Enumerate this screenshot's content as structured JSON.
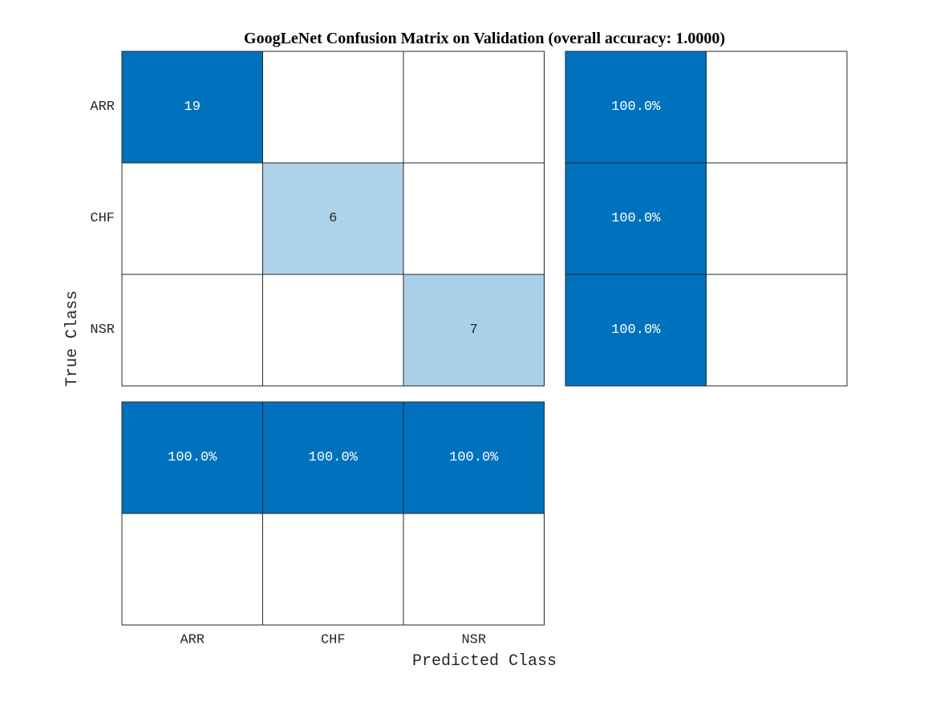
{
  "chart_data": {
    "type": "heatmap",
    "title": "GoogLeNet Confusion Matrix on Validation (overall accuracy: 1.0000)",
    "xlabel": "Predicted Class",
    "ylabel": "True Class",
    "classes": [
      "ARR",
      "CHF",
      "NSR"
    ],
    "matrix": [
      [
        19,
        0,
        0
      ],
      [
        0,
        6,
        0
      ],
      [
        0,
        0,
        7
      ]
    ],
    "row_summary": {
      "correct": [
        "100.0%",
        "100.0%",
        "100.0%"
      ],
      "incorrect": [
        "",
        "",
        ""
      ]
    },
    "column_summary": {
      "correct": [
        "100.0%",
        "100.0%",
        "100.0%"
      ],
      "incorrect": [
        "",
        "",
        ""
      ]
    },
    "colors": {
      "diagonal_max": "#0072BD",
      "summary_fill": "#0072BD",
      "light_text": "#ffffff",
      "dark_text": "#262626",
      "grid": "#262626",
      "empty": "#ffffff"
    }
  }
}
